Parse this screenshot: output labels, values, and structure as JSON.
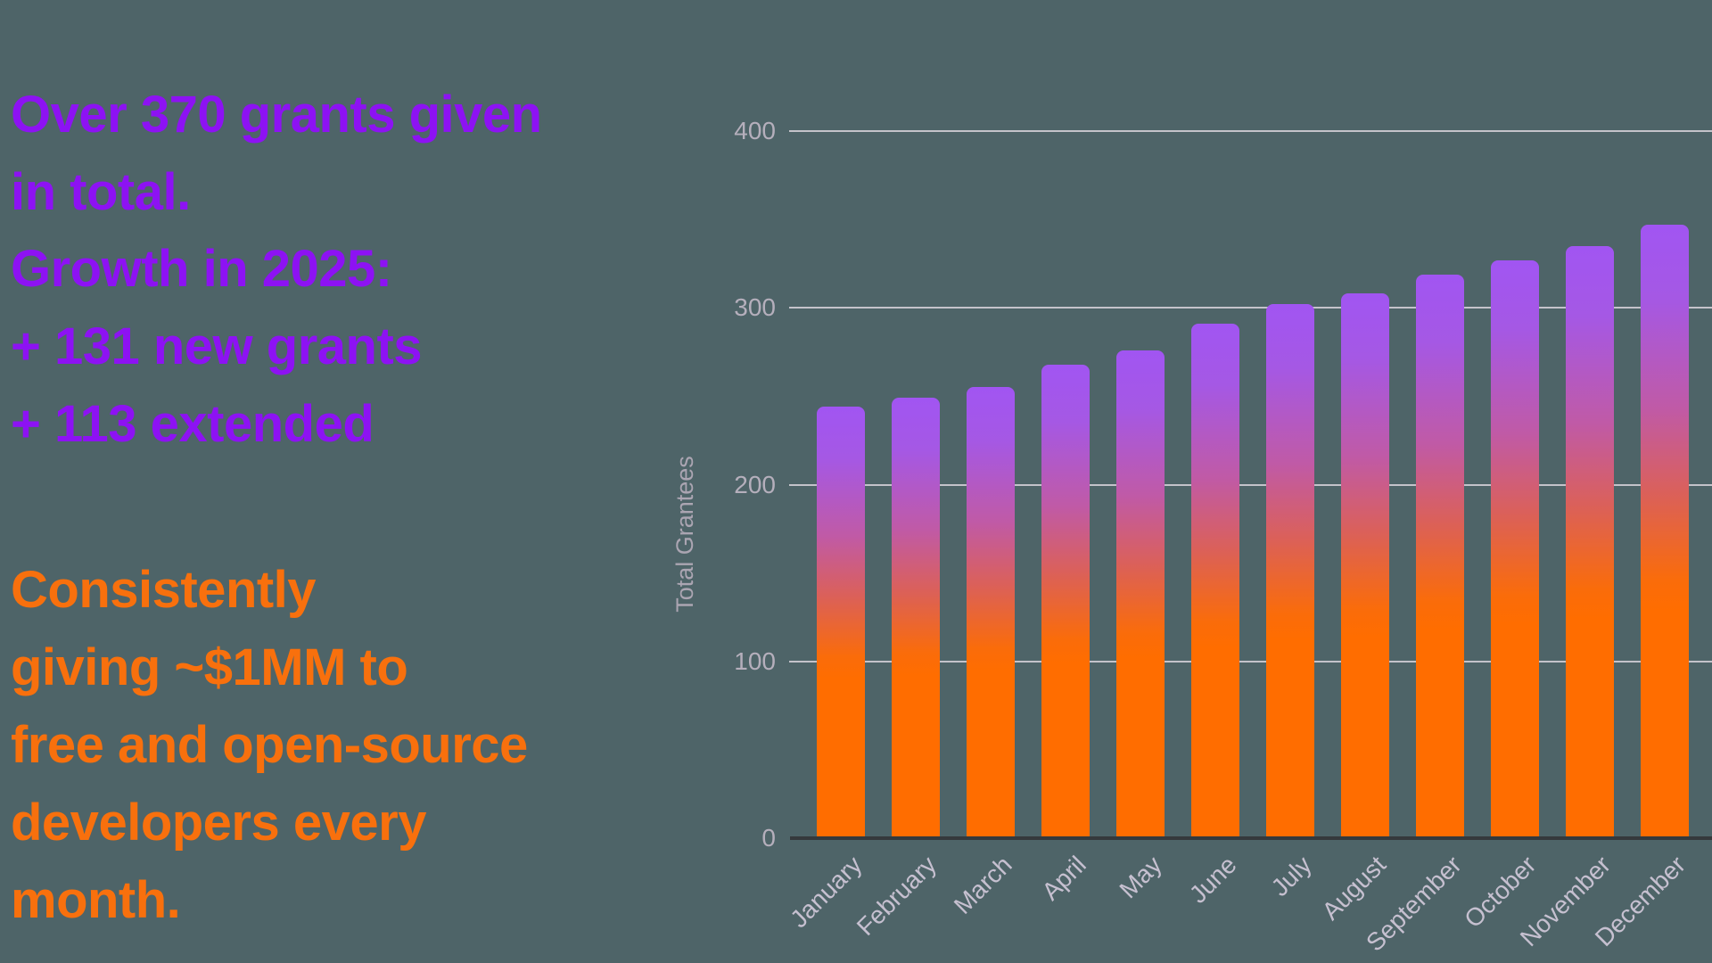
{
  "page": {
    "background_color": "#4e6468"
  },
  "left_panel": {
    "headline": "Over 370 grants given in total.",
    "headline_color": "#8d12f3",
    "growth_block": {
      "color": "#8d12f3",
      "lines": [
        "Growth in 2025:",
        "+ 131 new grants",
        "+ 113 extended"
      ]
    },
    "giving_block": {
      "color": "#f8700d",
      "lines": [
        "Consistently",
        "giving ~$1MM to",
        "free and open-source",
        "developers every month."
      ]
    }
  },
  "chart_data": {
    "type": "bar",
    "title": "",
    "xlabel": "",
    "ylabel": "Total Grantees",
    "categories": [
      "January",
      "February",
      "March",
      "April",
      "May",
      "June",
      "July",
      "August",
      "September",
      "October",
      "November",
      "December"
    ],
    "values": [
      244,
      249,
      255,
      268,
      276,
      291,
      302,
      308,
      319,
      327,
      335,
      347
    ],
    "ylim": [
      0,
      400
    ],
    "yticks": [
      0,
      100,
      200,
      300,
      400
    ],
    "grid": true,
    "legend": "none",
    "x_tick_rotation_deg": 45,
    "colors": {
      "bar_gradient_top": "#a155f2",
      "bar_gradient_mid": "#d35f7b",
      "bar_gradient_bottom": "#ff6d00",
      "gridline": "#cecbd3",
      "axis_line": "#35393c",
      "y_tick_label": "#b5afbc",
      "x_tick_label": "#c6c0d0",
      "axis_title": "#aba5b2"
    }
  }
}
